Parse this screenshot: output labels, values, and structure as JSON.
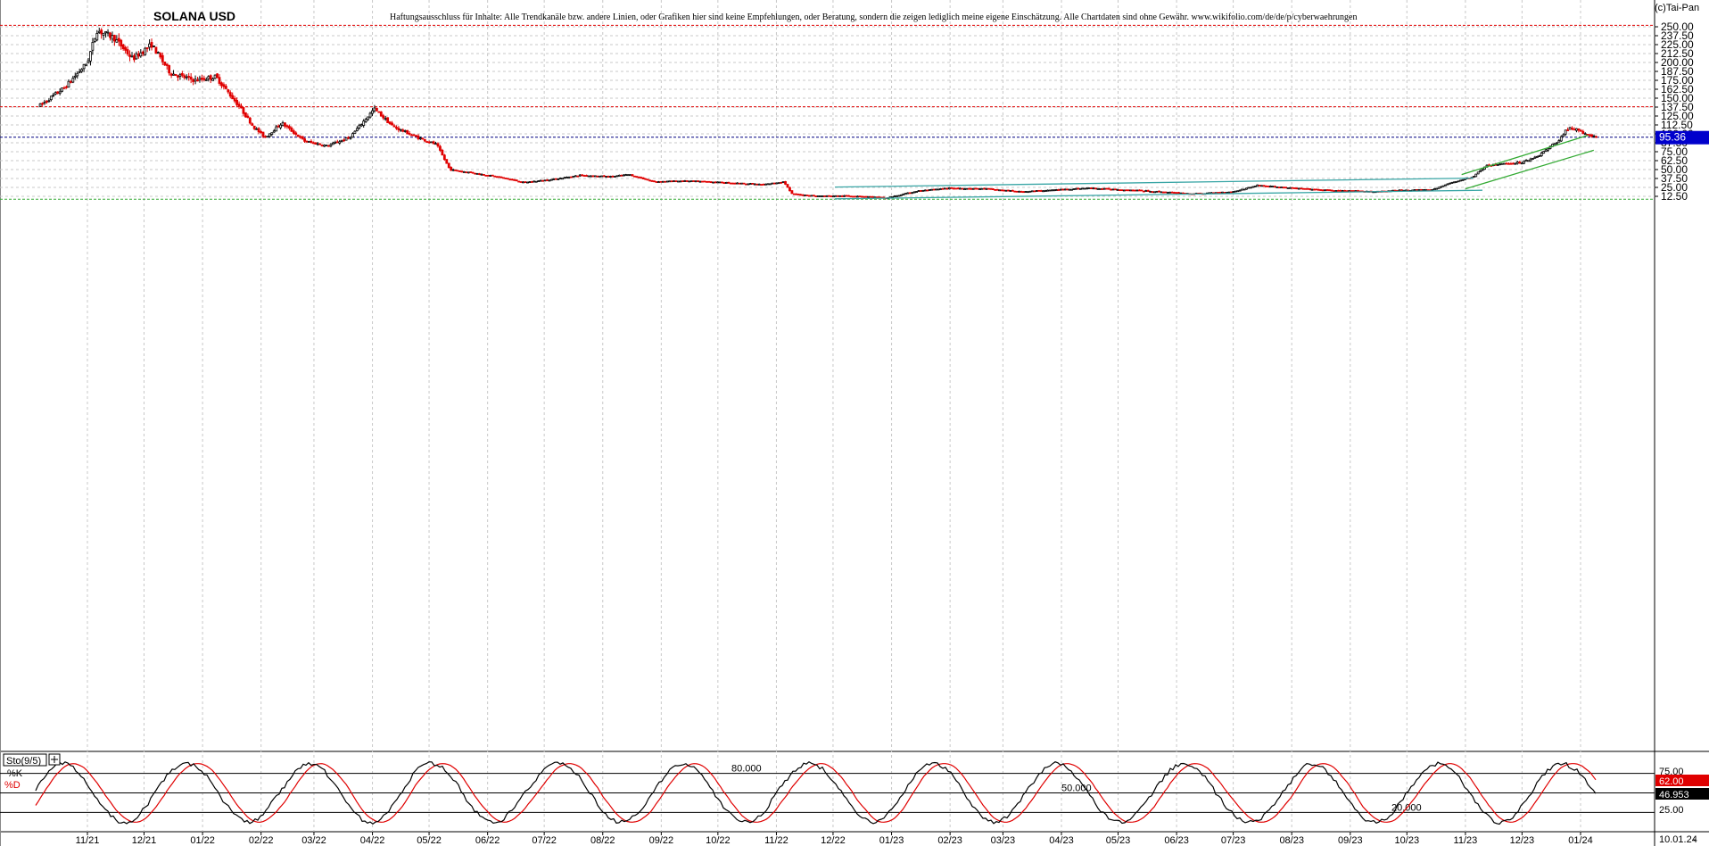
{
  "header": {
    "title": "SOLANA USD",
    "disclaimer": "Haftungsausschluss für Inhalte: Alle Trendkanäle bzw. andere Linien, oder Grafiken hier sind keine Empfehlungen, oder Beratung, sondern die zeigen lediglich meine eigene Einschätzung. Alle Chartdaten sind ohne Gewähr.  www.wikifolio.com/de/de/p/cyberwaehrungen",
    "copyright": "(c)Tai-Pan"
  },
  "colors": {
    "up": "#000000",
    "down": "#e00000",
    "grid": "#c8c8c8",
    "trend_channel": "#3aa6a6",
    "uptrend": "#33aa33",
    "current_price_bg": "#0000cc",
    "k_line": "#000000",
    "d_line": "#e00000"
  },
  "chart_data": [
    {
      "type": "candlestick",
      "title": "SOLANA USD",
      "x_ticks": [
        "11/21",
        "12/21",
        "01/22",
        "02/22",
        "03/22",
        "04/22",
        "05/22",
        "06/22",
        "07/22",
        "08/22",
        "09/22",
        "10/22",
        "11/22",
        "12/22",
        "01/23",
        "02/23",
        "03/23",
        "04/23",
        "05/23",
        "06/23",
        "07/23",
        "08/23",
        "09/23",
        "10/23",
        "11/23",
        "12/23",
        "01/24"
      ],
      "x_end_label": "10.01.24",
      "y_ticks": [
        "250.00",
        "237.50",
        "225.00",
        "212.50",
        "200.00",
        "187.50",
        "175.00",
        "162.50",
        "150.00",
        "137.50",
        "125.00",
        "112.50",
        "100.00",
        "87.50",
        "75.00",
        "62.50",
        "50.00",
        "37.50",
        "25.00",
        "12.50"
      ],
      "ylim": [
        0,
        255
      ],
      "current_price": "95.36",
      "close_anchors": [
        {
          "date": "2021-10-07",
          "close": 140
        },
        {
          "date": "2021-10-20",
          "close": 165
        },
        {
          "date": "2021-11-01",
          "close": 200
        },
        {
          "date": "2021-11-06",
          "close": 245
        },
        {
          "date": "2021-11-15",
          "close": 235
        },
        {
          "date": "2021-11-25",
          "close": 205
        },
        {
          "date": "2021-12-05",
          "close": 225
        },
        {
          "date": "2021-12-15",
          "close": 185
        },
        {
          "date": "2021-12-28",
          "close": 175
        },
        {
          "date": "2022-01-08",
          "close": 180
        },
        {
          "date": "2022-01-20",
          "close": 140
        },
        {
          "date": "2022-01-28",
          "close": 110
        },
        {
          "date": "2022-02-03",
          "close": 95
        },
        {
          "date": "2022-02-12",
          "close": 115
        },
        {
          "date": "2022-02-24",
          "close": 90
        },
        {
          "date": "2022-03-08",
          "close": 83
        },
        {
          "date": "2022-03-20",
          "close": 95
        },
        {
          "date": "2022-04-02",
          "close": 135
        },
        {
          "date": "2022-04-12",
          "close": 110
        },
        {
          "date": "2022-04-25",
          "close": 95
        },
        {
          "date": "2022-05-05",
          "close": 85
        },
        {
          "date": "2022-05-12",
          "close": 50
        },
        {
          "date": "2022-05-25",
          "close": 45
        },
        {
          "date": "2022-06-10",
          "close": 38
        },
        {
          "date": "2022-06-20",
          "close": 32
        },
        {
          "date": "2022-07-05",
          "close": 36
        },
        {
          "date": "2022-07-20",
          "close": 42
        },
        {
          "date": "2022-08-05",
          "close": 40
        },
        {
          "date": "2022-08-15",
          "close": 43
        },
        {
          "date": "2022-08-28",
          "close": 33
        },
        {
          "date": "2022-09-12",
          "close": 34
        },
        {
          "date": "2022-09-25",
          "close": 33
        },
        {
          "date": "2022-10-10",
          "close": 31
        },
        {
          "date": "2022-10-25",
          "close": 29
        },
        {
          "date": "2022-11-05",
          "close": 33
        },
        {
          "date": "2022-11-09",
          "close": 16
        },
        {
          "date": "2022-11-22",
          "close": 13
        },
        {
          "date": "2022-12-15",
          "close": 13
        },
        {
          "date": "2022-12-29",
          "close": 10
        },
        {
          "date": "2023-01-15",
          "close": 20
        },
        {
          "date": "2023-02-01",
          "close": 24
        },
        {
          "date": "2023-02-20",
          "close": 23
        },
        {
          "date": "2023-03-10",
          "close": 19
        },
        {
          "date": "2023-03-25",
          "close": 21
        },
        {
          "date": "2023-04-15",
          "close": 24
        },
        {
          "date": "2023-05-10",
          "close": 21
        },
        {
          "date": "2023-06-10",
          "close": 16
        },
        {
          "date": "2023-07-01",
          "close": 19
        },
        {
          "date": "2023-07-14",
          "close": 28
        },
        {
          "date": "2023-08-01",
          "close": 24
        },
        {
          "date": "2023-08-20",
          "close": 21
        },
        {
          "date": "2023-09-12",
          "close": 19
        },
        {
          "date": "2023-09-28",
          "close": 21
        },
        {
          "date": "2023-10-15",
          "close": 22
        },
        {
          "date": "2023-10-25",
          "close": 32
        },
        {
          "date": "2023-11-05",
          "close": 40
        },
        {
          "date": "2023-11-12",
          "close": 55
        },
        {
          "date": "2023-11-20",
          "close": 58
        },
        {
          "date": "2023-12-01",
          "close": 60
        },
        {
          "date": "2023-12-10",
          "close": 70
        },
        {
          "date": "2023-12-20",
          "close": 90
        },
        {
          "date": "2023-12-26",
          "close": 110
        },
        {
          "date": "2024-01-05",
          "close": 98
        },
        {
          "date": "2024-01-10",
          "close": 95.36
        }
      ],
      "horizontal_lines": [
        {
          "value": 252,
          "color": "#e00000"
        },
        {
          "value": 138,
          "color": "#e00000"
        },
        {
          "value": 95.36,
          "color": "#000080"
        },
        {
          "value": 8.5,
          "color": "#33aa33"
        }
      ],
      "trend_lines": [
        {
          "from": {
            "date": "2022-12-02",
            "value": 25.5
          },
          "to": {
            "date": "2023-11-05",
            "value": 38
          },
          "color": "#3aa6a6"
        },
        {
          "from": {
            "date": "2022-12-02",
            "value": 9
          },
          "to": {
            "date": "2023-11-10",
            "value": 21
          },
          "color": "#3aa6a6"
        },
        {
          "from": {
            "date": "2023-10-30",
            "value": 43
          },
          "to": {
            "date": "2024-01-05",
            "value": 98
          },
          "color": "#33aa33"
        },
        {
          "from": {
            "date": "2023-11-01",
            "value": 23
          },
          "to": {
            "date": "2024-01-08",
            "value": 77
          },
          "color": "#33aa33"
        }
      ]
    },
    {
      "type": "line",
      "title": "Sto(9/5)",
      "series": [
        {
          "name": "%K"
        },
        {
          "name": "%D"
        }
      ],
      "ylim": [
        0,
        100
      ],
      "y_ticks": [
        "75.00",
        "25.00"
      ],
      "levels": [
        {
          "label": "80.000",
          "value": 80
        },
        {
          "label": "50.000",
          "value": 50
        },
        {
          "label": "20.000",
          "value": 20
        }
      ],
      "k_value": "62.00",
      "d_value": "46.953"
    }
  ]
}
